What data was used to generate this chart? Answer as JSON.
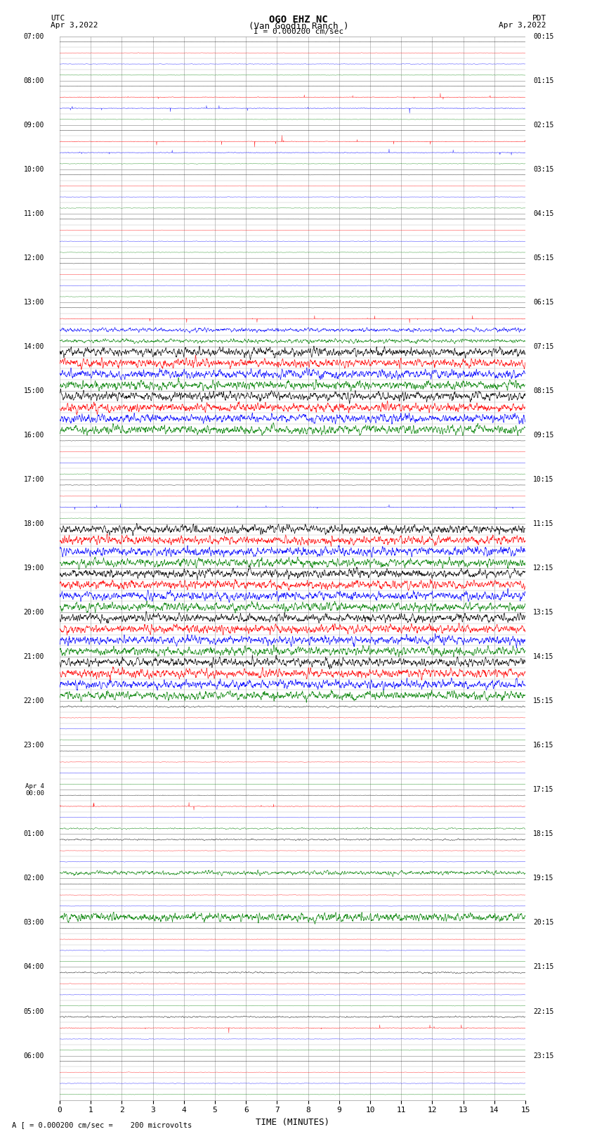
{
  "title_line1": "OGO EHZ NC",
  "title_line2": "(Van Goodin Ranch )",
  "title_line3": "I = 0.000200 cm/sec",
  "left_header1": "UTC",
  "left_header2": "Apr 3,2022",
  "right_header1": "PDT",
  "right_header2": "Apr 3,2022",
  "xlabel": "TIME (MINUTES)",
  "footer": "A [ = 0.000200 cm/sec =    200 microvolts",
  "utc_labels": [
    "07:00",
    "08:00",
    "09:00",
    "10:00",
    "11:00",
    "12:00",
    "13:00",
    "14:00",
    "15:00",
    "16:00",
    "17:00",
    "18:00",
    "19:00",
    "20:00",
    "21:00",
    "22:00",
    "23:00",
    "Apr 4\n00:00",
    "01:00",
    "02:00",
    "03:00",
    "04:00",
    "05:00",
    "06:00"
  ],
  "pdt_labels": [
    "00:15",
    "01:15",
    "02:15",
    "03:15",
    "04:15",
    "05:15",
    "06:15",
    "07:15",
    "08:15",
    "09:15",
    "10:15",
    "11:15",
    "12:15",
    "13:15",
    "14:15",
    "15:15",
    "16:15",
    "17:15",
    "18:15",
    "19:15",
    "20:15",
    "21:15",
    "22:15",
    "23:15"
  ],
  "n_hours": 24,
  "colors": [
    "black",
    "red",
    "blue",
    "green"
  ],
  "bg_color": "white",
  "grid_color": "#999999",
  "xmin": 0,
  "xmax": 15,
  "xticks": [
    0,
    1,
    2,
    3,
    4,
    5,
    6,
    7,
    8,
    9,
    10,
    11,
    12,
    13,
    14,
    15
  ],
  "row_amplitude_config": {
    "quiet_amp": 0.018,
    "quiet_lw": 0.3,
    "mild_amp": 0.06,
    "mild_lw": 0.35,
    "moderate_amp": 0.2,
    "moderate_lw": 0.45,
    "large_amp": 0.38,
    "large_lw": 0.5
  }
}
